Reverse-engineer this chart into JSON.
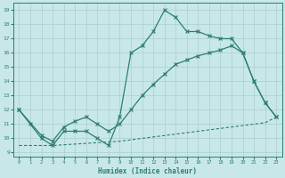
{
  "line1_x": [
    0,
    1,
    2,
    3,
    4,
    5,
    6,
    7,
    8,
    9,
    10,
    11,
    12,
    13,
    14,
    15,
    16,
    17,
    18,
    19,
    20,
    21,
    22,
    23
  ],
  "line1_y": [
    12,
    11,
    10,
    9.5,
    10.5,
    10.5,
    10.5,
    10,
    9.5,
    11.5,
    16.0,
    16.5,
    17.5,
    19,
    18.5,
    17.5,
    17.5,
    17.2,
    17,
    17,
    16,
    14,
    12.5,
    11.5
  ],
  "line2_x": [
    0,
    2,
    3,
    4,
    5,
    6,
    7,
    8,
    9,
    10,
    11,
    12,
    13,
    14,
    15,
    16,
    17,
    18,
    19,
    20,
    21,
    22,
    23
  ],
  "line2_y": [
    12,
    10.2,
    9.8,
    10.8,
    11.2,
    11.5,
    11.0,
    10.5,
    11.0,
    12.0,
    13.0,
    13.8,
    14.5,
    15.2,
    15.5,
    15.8,
    16.0,
    16.2,
    16.5,
    16.0,
    14.0,
    12.5,
    11.5
  ],
  "line3_x": [
    0,
    1,
    2,
    3,
    4,
    5,
    6,
    7,
    8,
    9,
    10,
    11,
    12,
    13,
    14,
    15,
    16,
    17,
    18,
    19,
    20,
    21,
    22,
    23
  ],
  "line3_y": [
    9.5,
    9.5,
    9.5,
    9.5,
    9.55,
    9.6,
    9.65,
    9.7,
    9.75,
    9.8,
    9.9,
    10.0,
    10.1,
    10.2,
    10.3,
    10.4,
    10.5,
    10.6,
    10.7,
    10.8,
    10.9,
    11.0,
    11.1,
    11.5
  ],
  "color": "#2e7d6e",
  "bg_color": "#c8e8e8",
  "grid_color": "#aacece",
  "xlabel": "Humidex (Indice chaleur)",
  "xlim": [
    -0.5,
    23.5
  ],
  "ylim": [
    8.7,
    19.5
  ],
  "xticks": [
    0,
    1,
    2,
    3,
    4,
    5,
    6,
    7,
    8,
    9,
    10,
    11,
    12,
    13,
    14,
    15,
    16,
    17,
    18,
    19,
    20,
    21,
    22,
    23
  ],
  "yticks": [
    9,
    10,
    11,
    12,
    13,
    14,
    15,
    16,
    17,
    18,
    19
  ]
}
